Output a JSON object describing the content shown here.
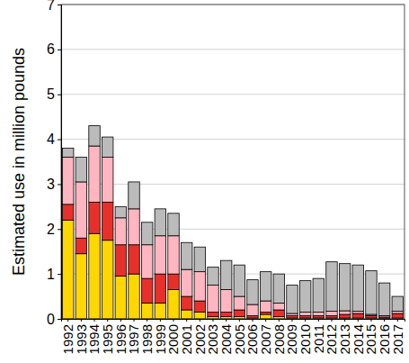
{
  "chart_data": {
    "type": "bar",
    "stacked": true,
    "grid": true,
    "y_label": "Estimated use in million pounds",
    "categories": [
      "1992",
      "1993",
      "1994",
      "1995",
      "1996",
      "1997",
      "1998",
      "1999",
      "2000",
      "2001",
      "2002",
      "2003",
      "2004",
      "2005",
      "2006",
      "2007",
      "2008",
      "2009",
      "2010",
      "2011",
      "2012",
      "2013",
      "2014",
      "2015",
      "2016",
      "2017"
    ],
    "series": [
      {
        "color": "#FFD700",
        "values": [
          2.2,
          1.45,
          1.9,
          1.75,
          0.95,
          1.0,
          0.35,
          0.35,
          0.65,
          0.2,
          0.15,
          0.05,
          0.05,
          0.05,
          0.02,
          0.1,
          0.05,
          0.02,
          0.02,
          0.02,
          0.02,
          0.02,
          0.02,
          0.02,
          0.01,
          0.02
        ]
      },
      {
        "color": "#E8302A",
        "values": [
          0.35,
          0.35,
          0.7,
          0.85,
          0.7,
          0.65,
          0.55,
          0.65,
          0.35,
          0.3,
          0.25,
          0.1,
          0.1,
          0.15,
          0.05,
          0.05,
          0.15,
          0.05,
          0.05,
          0.05,
          0.05,
          0.08,
          0.1,
          0.05,
          0.03,
          0.1
        ]
      },
      {
        "color": "#FFB6C1",
        "values": [
          1.05,
          1.25,
          1.25,
          1.0,
          0.6,
          0.8,
          0.75,
          0.85,
          0.85,
          0.6,
          0.65,
          0.6,
          0.5,
          0.3,
          0.25,
          0.25,
          0.15,
          0.05,
          0.08,
          0.08,
          0.1,
          0.08,
          0.05,
          0.03,
          0.03,
          0.05
        ]
      },
      {
        "color": "#BBBBBB",
        "values": [
          0.2,
          0.55,
          0.45,
          0.45,
          0.25,
          0.6,
          0.5,
          0.6,
          0.5,
          0.6,
          0.55,
          0.4,
          0.65,
          0.7,
          0.55,
          0.65,
          0.65,
          0.63,
          0.7,
          0.75,
          1.1,
          1.05,
          1.03,
          0.97,
          0.73,
          0.33
        ]
      }
    ],
    "ylim": [
      0,
      7
    ],
    "yticks": [
      0,
      1,
      2,
      3,
      4,
      5,
      6,
      7
    ]
  }
}
